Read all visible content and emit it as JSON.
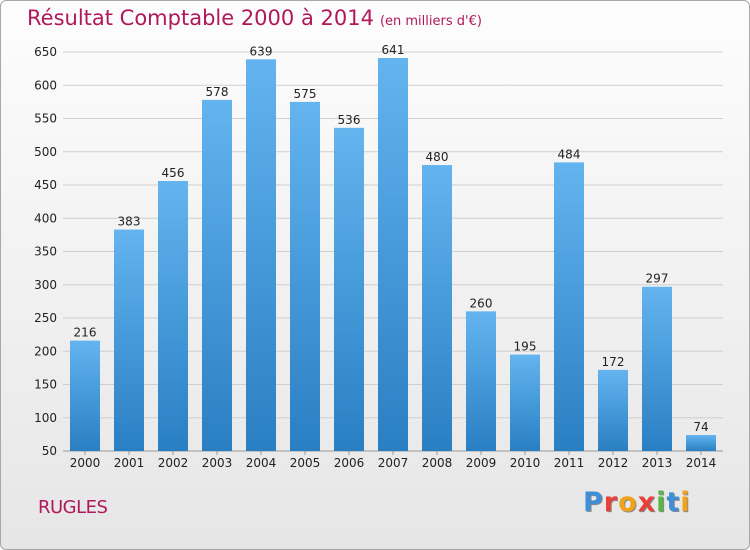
{
  "header": {
    "title": "Résultat Comptable 2000 à 2014",
    "unit": "(en milliers d'€)"
  },
  "footer": {
    "commune": "RUGLES",
    "brand": "Proxiti",
    "brand_colors": [
      "#3f8fd6",
      "#e8413a",
      "#f1a21b",
      "#e8413a",
      "#5bb543",
      "#3f8fd6",
      "#f1a21b"
    ]
  },
  "colors": {
    "title": "#b0185a",
    "bar_light": "#63b4ef",
    "bar_dark": "#2a7fc3",
    "grid": "#cfcfcf"
  },
  "chart_data": {
    "type": "bar",
    "title": "Résultat Comptable 2000 à 2014",
    "subtitle": "(en milliers d'€)",
    "xlabel": "",
    "ylabel": "",
    "categories": [
      "2000",
      "2001",
      "2002",
      "2003",
      "2004",
      "2005",
      "2006",
      "2007",
      "2008",
      "2009",
      "2010",
      "2011",
      "2012",
      "2013",
      "2014"
    ],
    "values": [
      216,
      383,
      456,
      578,
      639,
      575,
      536,
      641,
      480,
      260,
      195,
      484,
      172,
      297,
      74
    ],
    "ylim": [
      50,
      650
    ],
    "yticks": [
      50,
      100,
      150,
      200,
      250,
      300,
      350,
      400,
      450,
      500,
      550,
      600,
      650
    ],
    "grid": true,
    "legend": "none"
  }
}
